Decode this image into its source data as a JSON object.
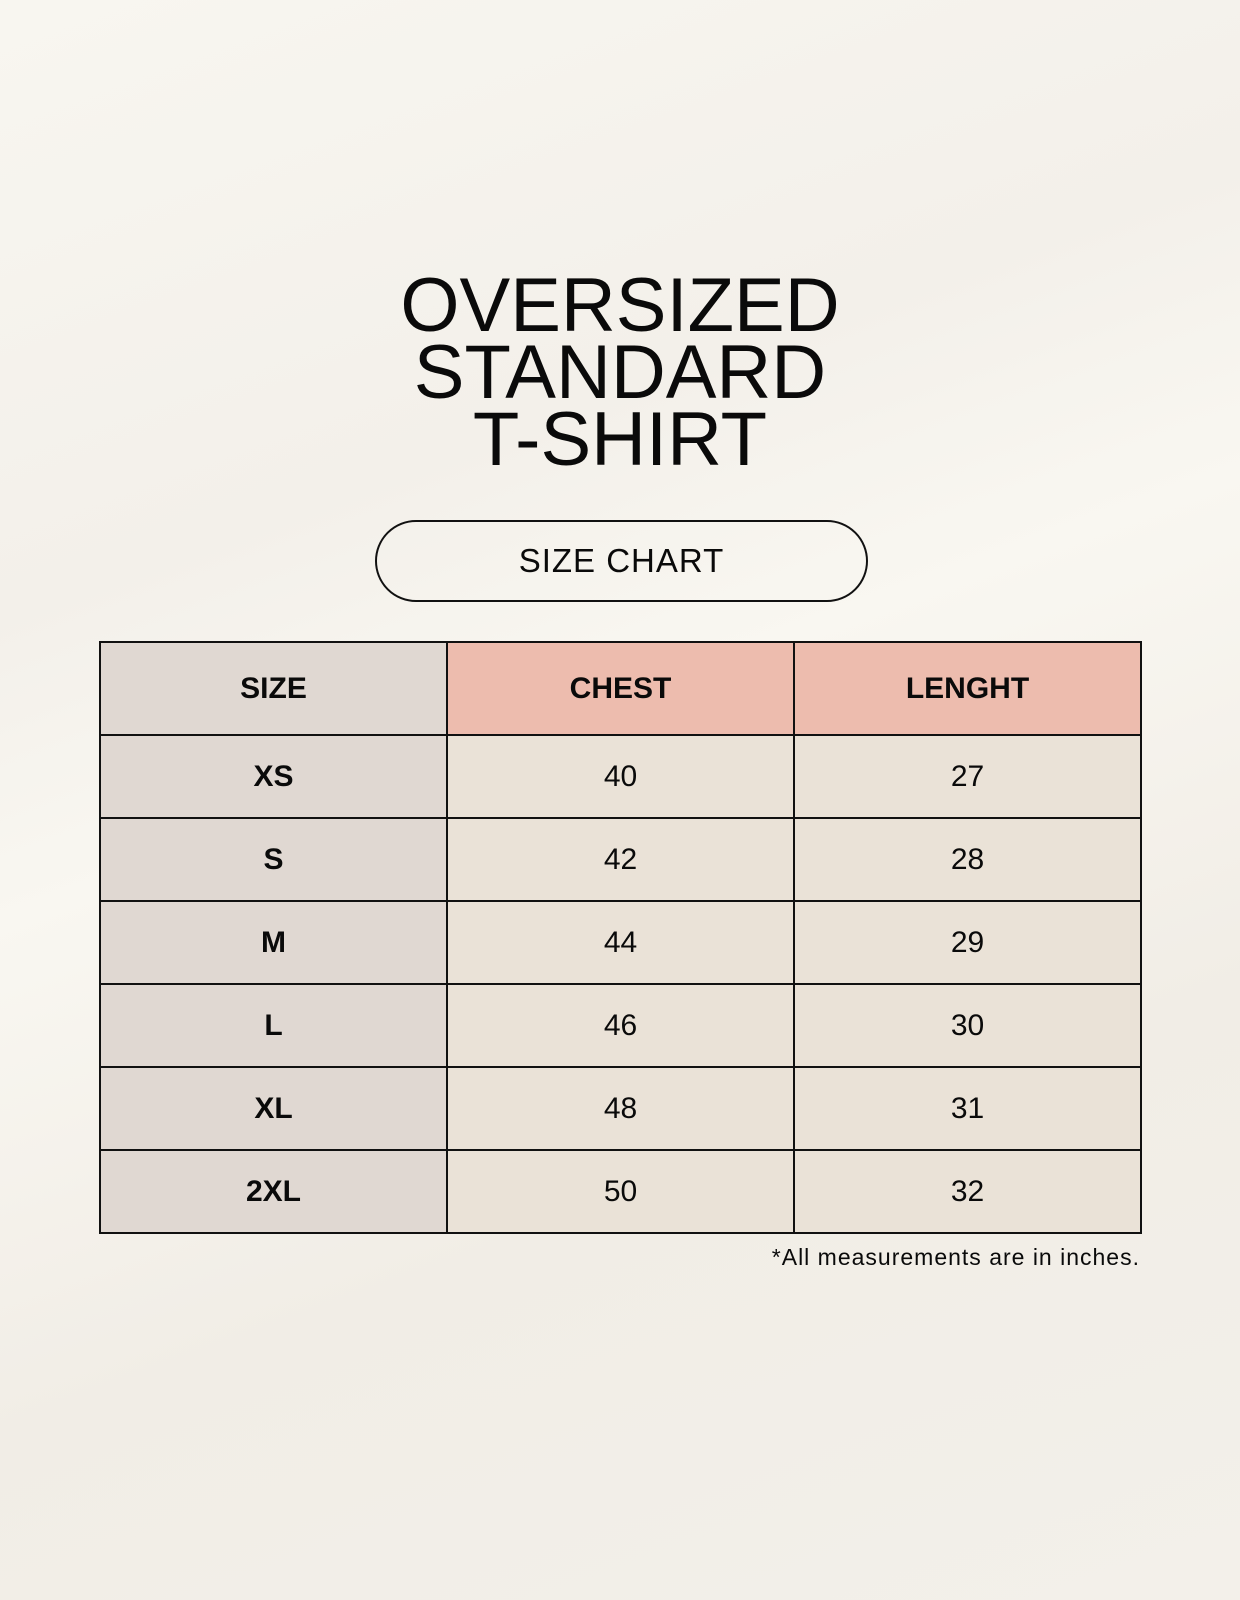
{
  "title": {
    "lines": [
      "OVERSIZED",
      "STANDARD",
      "T-SHIRT"
    ]
  },
  "badge": "SIZE CHART",
  "table": {
    "headers": [
      "SIZE",
      "CHEST",
      "LENGHT"
    ],
    "rows": [
      [
        "XS",
        "40",
        "27"
      ],
      [
        "S",
        "42",
        "28"
      ],
      [
        "M",
        "44",
        "29"
      ],
      [
        "L",
        "46",
        "30"
      ],
      [
        "XL",
        "48",
        "31"
      ],
      [
        "2XL",
        "50",
        "32"
      ]
    ]
  },
  "footnote": "*All measurements are in inches.",
  "colors": {
    "size_column": "#e0d8d2",
    "header_accent": "#edbcae",
    "value_cells": "#eae2d7"
  }
}
